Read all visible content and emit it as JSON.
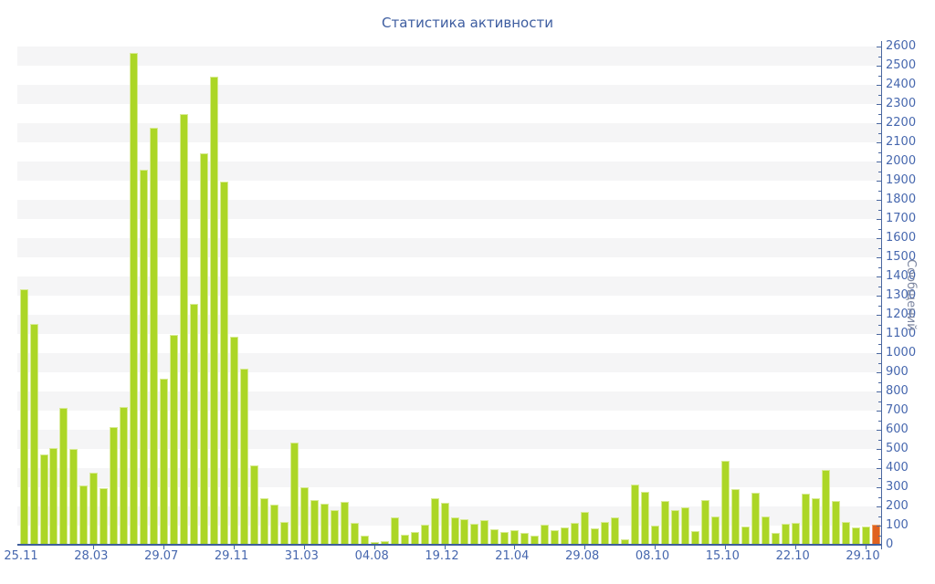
{
  "title": "Статистика активности",
  "colors": {
    "bar_fill": "#acd626",
    "bar_border": "#d8eb94",
    "current_bar_fill": "#e0611f",
    "current_bar_border": "#eea167",
    "stripe_band": "#f5f5f6",
    "axis_line": "#4a679f",
    "tick_text": "#4667ae",
    "title_text": "#3d5da0",
    "y_axis_title_text": "#7c86a0",
    "background": "#ffffff"
  },
  "chart_data": {
    "type": "bar",
    "title": "Статистика активности",
    "xlabel": "",
    "ylabel": "Сообщений",
    "ylim": [
      0,
      2600
    ],
    "y_major_step": 100,
    "y_minor_step": 50,
    "legend": "none",
    "grid": "alternating horizontal bands, value axis on right",
    "bar_count": 86,
    "x_tick_labels": [
      "25.11",
      "28.03",
      "29.07",
      "29.11",
      "31.03",
      "04.08",
      "19.12",
      "21.04",
      "29.08",
      "08.10",
      "15.10",
      "22.10",
      "29.10"
    ],
    "x_tick_indices": [
      0,
      7,
      14,
      21,
      28,
      35,
      42,
      49,
      56,
      63,
      70,
      77,
      84
    ],
    "values": [
      1335,
      1155,
      470,
      505,
      715,
      500,
      310,
      375,
      295,
      615,
      720,
      2565,
      1955,
      2175,
      865,
      1095,
      2250,
      1255,
      2045,
      2445,
      1895,
      1085,
      920,
      415,
      245,
      210,
      120,
      535,
      300,
      235,
      215,
      180,
      225,
      115,
      50,
      15,
      20,
      145,
      55,
      65,
      105,
      245,
      220,
      145,
      135,
      110,
      130,
      80,
      65,
      75,
      60,
      50,
      105,
      75,
      90,
      115,
      170,
      85,
      120,
      145,
      30,
      315,
      275,
      100,
      230,
      180,
      195,
      70,
      235,
      150,
      440,
      290,
      95,
      270,
      150,
      60,
      110,
      115,
      265,
      245,
      390,
      230,
      120,
      90,
      95,
      105
    ],
    "highlighted_bar": {
      "index": 85,
      "value": 105
    }
  }
}
